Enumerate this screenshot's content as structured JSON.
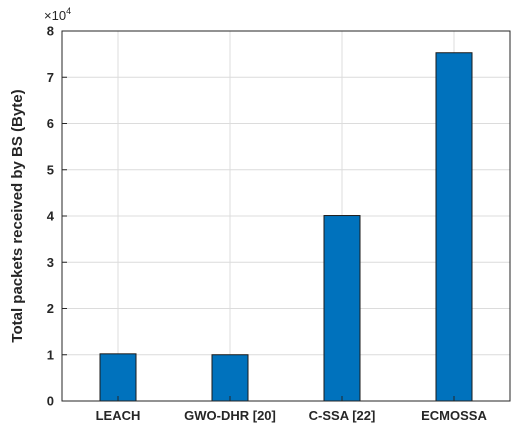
{
  "chart_data": {
    "type": "bar",
    "categories": [
      "LEACH",
      "GWO-DHR [20]",
      "C-SSA [22]",
      "ECMOSSA"
    ],
    "values": [
      10200,
      10000,
      40100,
      75300
    ],
    "title": "",
    "xlabel": "",
    "ylabel": "Total packets received by BS (Byte)",
    "ylim": [
      0,
      80000
    ],
    "yticks": [
      0,
      1,
      2,
      3,
      4,
      5,
      6,
      7,
      8
    ],
    "y_multiplier": {
      "base": "×10",
      "exponent": "4"
    },
    "grid": true,
    "bar_color": "#0072BD"
  }
}
